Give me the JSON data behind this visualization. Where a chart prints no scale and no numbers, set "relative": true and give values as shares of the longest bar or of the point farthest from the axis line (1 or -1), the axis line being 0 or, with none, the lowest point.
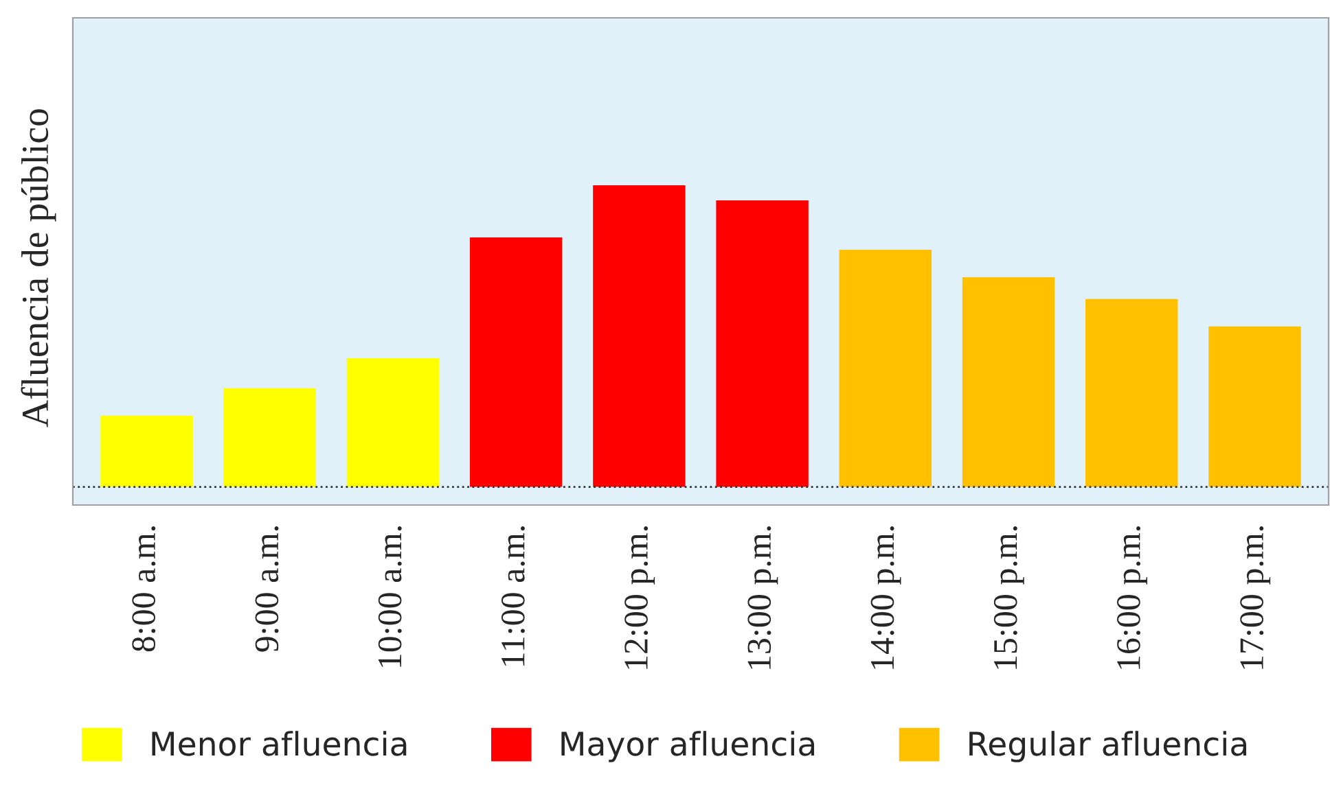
{
  "chart_data": {
    "type": "bar",
    "ylabel": "Afluencia de público",
    "relative": true,
    "categories": [
      "8:00 a.m.",
      "9:00 a.m.",
      "10:00 a.m.",
      "11:00 a.m.",
      "12:00 p.m.",
      "13:00 p.m.",
      "14:00 p.m.",
      "15:00 p.m.",
      "16:00 p.m.",
      "17:00 p.m."
    ],
    "series": [
      {
        "name": "Menor afluencia",
        "color": "#ffff00",
        "values": [
          0.236,
          0.327,
          0.427,
          null,
          null,
          null,
          null,
          null,
          null,
          null
        ]
      },
      {
        "name": "Mayor afluencia",
        "color": "#ff0000",
        "values": [
          null,
          null,
          null,
          0.827,
          1,
          0.95,
          null,
          null,
          null,
          null
        ]
      },
      {
        "name": "Regular afluencia",
        "color": "#ffc000",
        "values": [
          null,
          null,
          null,
          null,
          null,
          null,
          0.786,
          0.695,
          0.623,
          0.532
        ]
      }
    ],
    "legend": "bottom",
    "grid": false
  }
}
